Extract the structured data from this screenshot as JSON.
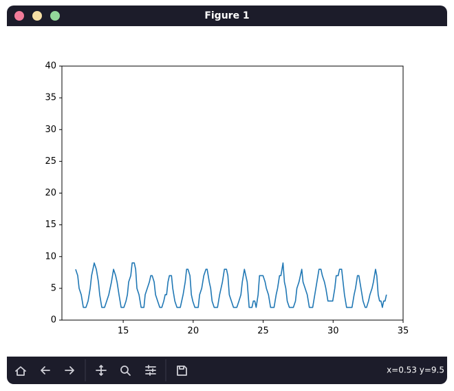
{
  "window": {
    "title": "Figure 1",
    "status": "x=0.53 y=9.5"
  },
  "chart_data": {
    "type": "line",
    "color": "#1f77b4",
    "xlim": [
      10.62,
      35
    ],
    "ylim": [
      0,
      40
    ],
    "xticks": [
      15,
      20,
      25,
      30,
      35
    ],
    "yticks": [
      0,
      5,
      10,
      15,
      20,
      25,
      30,
      35,
      40
    ],
    "x": [
      11.6,
      11.75,
      11.85,
      12.0,
      12.15,
      12.34,
      12.49,
      12.64,
      12.74,
      12.93,
      13.08,
      13.23,
      13.32,
      13.47,
      13.67,
      13.82,
      13.97,
      14.16,
      14.31,
      14.46,
      14.56,
      14.7,
      14.85,
      15.05,
      15.2,
      15.3,
      15.39,
      15.54,
      15.64,
      15.79,
      15.89,
      15.98,
      16.13,
      16.28,
      16.48,
      16.57,
      16.72,
      16.87,
      16.97,
      17.07,
      17.21,
      17.31,
      17.46,
      17.61,
      17.76,
      17.9,
      18.0,
      18.1,
      18.2,
      18.3,
      18.45,
      18.54,
      18.69,
      18.84,
      19.08,
      19.18,
      19.28,
      19.43,
      19.53,
      19.63,
      19.77,
      19.87,
      19.97,
      20.12,
      20.36,
      20.46,
      20.61,
      20.76,
      20.91,
      21.0,
      21.15,
      21.25,
      21.35,
      21.5,
      21.74,
      21.89,
      21.99,
      22.09,
      22.23,
      22.38,
      22.48,
      22.58,
      22.73,
      22.88,
      23.12,
      23.27,
      23.41,
      23.51,
      23.66,
      23.76,
      23.86,
      24.0,
      24.2,
      24.3,
      24.4,
      24.5,
      24.64,
      24.74,
      24.99,
      25.14,
      25.23,
      25.38,
      25.53,
      25.78,
      25.93,
      26.03,
      26.17,
      26.27,
      26.42,
      26.52,
      26.62,
      26.72,
      26.87,
      27.16,
      27.31,
      27.41,
      27.56,
      27.76,
      27.85,
      28.0,
      28.15,
      28.3,
      28.54,
      28.69,
      28.84,
      28.99,
      29.13,
      29.23,
      29.38,
      29.48,
      29.63,
      29.82,
      29.97,
      30.12,
      30.22,
      30.36,
      30.46,
      30.61,
      30.71,
      30.81,
      30.96,
      31.35,
      31.5,
      31.6,
      31.74,
      31.84,
      31.99,
      32.14,
      32.29,
      32.39,
      32.53,
      32.63,
      32.78,
      32.88,
      33.03,
      33.12,
      33.22,
      33.32,
      33.42,
      33.52,
      33.61,
      33.71,
      33.81
    ],
    "values": [
      8,
      7,
      5,
      4,
      2,
      2,
      3,
      5,
      7,
      9,
      8,
      6,
      4,
      2,
      2,
      3,
      4,
      6,
      8,
      7,
      6,
      4,
      2,
      2,
      3,
      4,
      6,
      7,
      9,
      9,
      8,
      5,
      4,
      2,
      2,
      4,
      5,
      6,
      7,
      7,
      6,
      4,
      3,
      2,
      2,
      3,
      4,
      4,
      6,
      7,
      7,
      5,
      3,
      2,
      2,
      3,
      4,
      6,
      8,
      8,
      7,
      4,
      3,
      2,
      2,
      4,
      5,
      7,
      8,
      8,
      6,
      5,
      3,
      2,
      2,
      4,
      5,
      6,
      8,
      8,
      7,
      4,
      3,
      2,
      2,
      3,
      4,
      6,
      8,
      7,
      6,
      2,
      2,
      3,
      3,
      2,
      4,
      7,
      7,
      6,
      5,
      4,
      2,
      2,
      4,
      5,
      7,
      7,
      9,
      6,
      5,
      3,
      2,
      2,
      3,
      5,
      6,
      8,
      6,
      5,
      4,
      2,
      2,
      4,
      6,
      8,
      8,
      7,
      6,
      5,
      3,
      3,
      3,
      5,
      7,
      7,
      8,
      8,
      6,
      4,
      2,
      2,
      4,
      5,
      7,
      7,
      5,
      3,
      2,
      2,
      3,
      4,
      5,
      6,
      8,
      7,
      4,
      3,
      3,
      2,
      3,
      3,
      4
    ]
  }
}
